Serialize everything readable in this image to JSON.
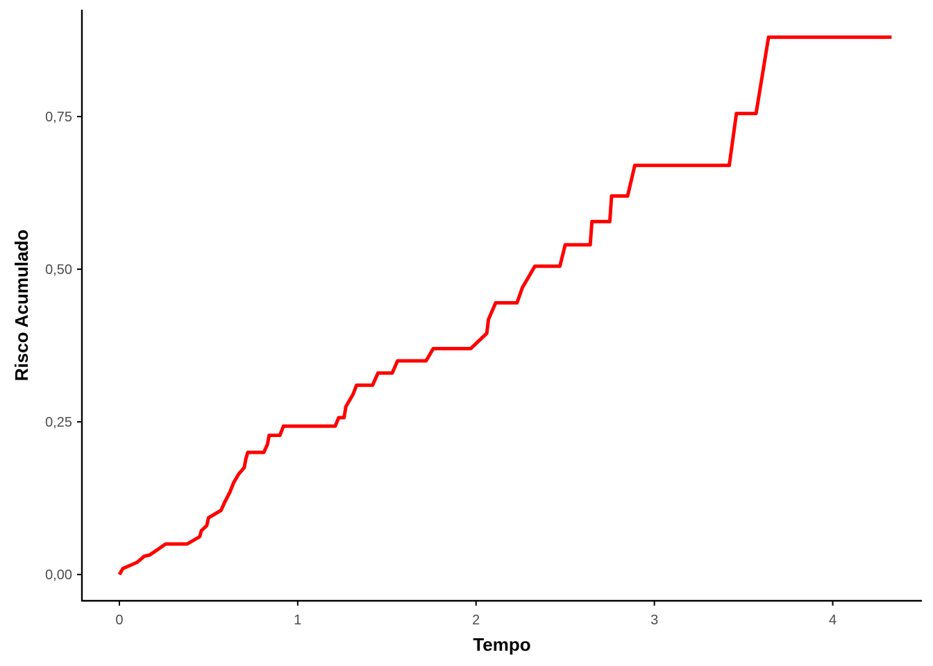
{
  "chart_data": {
    "type": "line",
    "title": "",
    "xlabel": "Tempo",
    "ylabel": "Risco Acumulado",
    "xlim": [
      -0.21,
      4.5
    ],
    "ylim": [
      -0.043,
      0.925
    ],
    "x_ticks": [
      0,
      1,
      2,
      3,
      4
    ],
    "x_tick_labels": [
      "0",
      "1",
      "2",
      "3",
      "4"
    ],
    "y_ticks": [
      0,
      0.25,
      0.5,
      0.75
    ],
    "y_tick_labels": [
      "0,00",
      "0,25",
      "0,50",
      "0,75"
    ],
    "grid": false,
    "legend": "none",
    "series": [
      {
        "color": "#ff0000",
        "x": [
          0.0,
          0.02,
          0.06,
          0.1,
          0.14,
          0.17,
          0.22,
          0.26,
          0.38,
          0.45,
          0.46,
          0.49,
          0.5,
          0.57,
          0.59,
          0.62,
          0.64,
          0.67,
          0.7,
          0.71,
          0.72,
          0.74,
          0.81,
          0.83,
          0.84,
          0.9,
          0.92,
          1.21,
          1.23,
          1.26,
          1.27,
          1.31,
          1.33,
          1.42,
          1.45,
          1.53,
          1.56,
          1.72,
          1.76,
          1.97,
          2.06,
          2.07,
          2.11,
          2.23,
          2.26,
          2.27,
          2.33,
          2.47,
          2.5,
          2.64,
          2.65,
          2.75,
          2.76,
          2.85,
          2.89,
          3.42,
          3.46,
          3.57,
          3.64,
          4.33
        ],
        "y": [
          0.0,
          0.01,
          0.015,
          0.02,
          0.03,
          0.032,
          0.042,
          0.05,
          0.05,
          0.062,
          0.072,
          0.08,
          0.093,
          0.105,
          0.118,
          0.135,
          0.15,
          0.165,
          0.175,
          0.19,
          0.2,
          0.2,
          0.2,
          0.213,
          0.228,
          0.228,
          0.243,
          0.243,
          0.257,
          0.257,
          0.275,
          0.295,
          0.31,
          0.31,
          0.33,
          0.33,
          0.35,
          0.35,
          0.37,
          0.37,
          0.395,
          0.418,
          0.445,
          0.445,
          0.47,
          0.475,
          0.505,
          0.505,
          0.54,
          0.54,
          0.578,
          0.578,
          0.62,
          0.62,
          0.67,
          0.67,
          0.755,
          0.755,
          0.88,
          0.88
        ]
      }
    ]
  }
}
